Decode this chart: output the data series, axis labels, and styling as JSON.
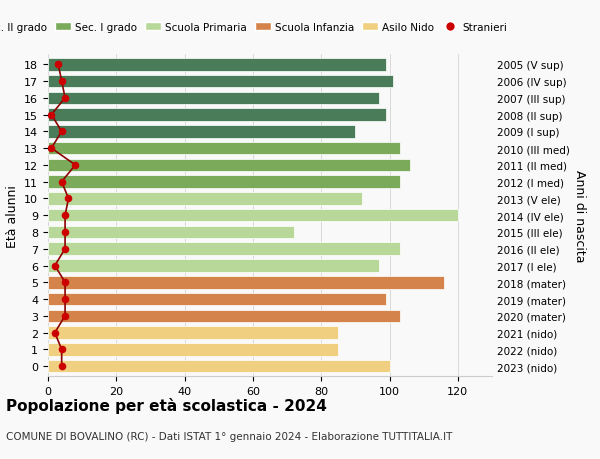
{
  "ages": [
    18,
    17,
    16,
    15,
    14,
    13,
    12,
    11,
    10,
    9,
    8,
    7,
    6,
    5,
    4,
    3,
    2,
    1,
    0
  ],
  "right_labels": [
    "2005 (V sup)",
    "2006 (IV sup)",
    "2007 (III sup)",
    "2008 (II sup)",
    "2009 (I sup)",
    "2010 (III med)",
    "2011 (II med)",
    "2012 (I med)",
    "2013 (V ele)",
    "2014 (IV ele)",
    "2015 (III ele)",
    "2016 (II ele)",
    "2017 (I ele)",
    "2018 (mater)",
    "2019 (mater)",
    "2020 (mater)",
    "2021 (nido)",
    "2022 (nido)",
    "2023 (nido)"
  ],
  "bar_values": [
    99,
    101,
    97,
    99,
    90,
    103,
    106,
    103,
    92,
    120,
    72,
    103,
    97,
    116,
    99,
    103,
    85,
    85,
    100
  ],
  "bar_colors": [
    "#4a7c59",
    "#4a7c59",
    "#4a7c59",
    "#4a7c59",
    "#4a7c59",
    "#7aaa5a",
    "#7aaa5a",
    "#7aaa5a",
    "#b8d89a",
    "#b8d89a",
    "#b8d89a",
    "#b8d89a",
    "#b8d89a",
    "#d4844a",
    "#d4844a",
    "#d4844a",
    "#f0d080",
    "#f0d080",
    "#f0d080"
  ],
  "stranieri_values": [
    3,
    4,
    5,
    1,
    4,
    1,
    8,
    4,
    6,
    5,
    5,
    5,
    2,
    5,
    5,
    5,
    2,
    4,
    4
  ],
  "legend_labels": [
    "Sec. II grado",
    "Sec. I grado",
    "Scuola Primaria",
    "Scuola Infanzia",
    "Asilo Nido",
    "Stranieri"
  ],
  "legend_colors": [
    "#4a7c59",
    "#7aaa5a",
    "#b8d89a",
    "#d4844a",
    "#f0d080",
    "#cc0000"
  ],
  "xlabel": "",
  "ylabel": "Età alunni",
  "ylabel_right": "Anni di nascita",
  "title": "Popolazione per età scolastica - 2024",
  "subtitle": "COMUNE DI BOVALINO (RC) - Dati ISTAT 1° gennaio 2024 - Elaborazione TUTTITALIA.IT",
  "xlim": [
    0,
    130
  ],
  "xticks": [
    0,
    20,
    40,
    60,
    80,
    100,
    120
  ],
  "bg_color": "#f9f9f9",
  "bar_height": 0.75
}
